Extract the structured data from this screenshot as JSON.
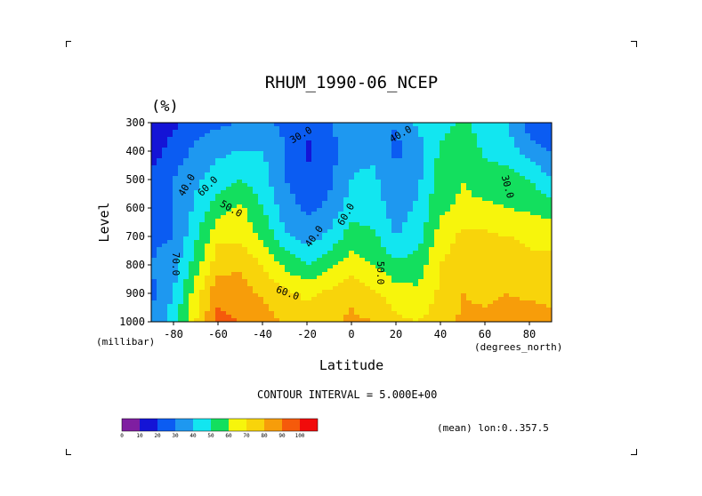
{
  "chart_data": {
    "type": "heatmap",
    "title": "RHUM_1990-06_NCEP",
    "units": "(%)",
    "xlabel": "Latitude",
    "x_units": "(degrees_north)",
    "ylabel": "Level",
    "y_units": "(millibar)",
    "x_ticks": [
      "-80",
      "-60",
      "-40",
      "-20",
      "0",
      "20",
      "40",
      "60",
      "80"
    ],
    "y_ticks": [
      "300",
      "400",
      "500",
      "600",
      "700",
      "800",
      "900",
      "1000"
    ],
    "xlim": [
      -90,
      90
    ],
    "ylim": [
      1000,
      300
    ],
    "contour_interval_text": "CONTOUR INTERVAL = 5.000E+00",
    "mean_text": "(mean) lon:0..357.5",
    "contour_labels": [
      "30.0",
      "40.0",
      "40.0",
      "60.0",
      "50.0",
      "60.0",
      "40.0",
      "30.0",
      "70.0",
      "60.0",
      "50.0"
    ],
    "colorbar": {
      "ticks": [
        "0",
        "10",
        "20",
        "30",
        "40",
        "50",
        "60",
        "70",
        "80",
        "90",
        "100"
      ],
      "colors": [
        "#7f1ea1",
        "#1414d6",
        "#0b5cf2",
        "#1e98f0",
        "#12e6f0",
        "#13df5e",
        "#f7f50c",
        "#f8d40b",
        "#f79d0a",
        "#f55a0b",
        "#f10b0b"
      ]
    },
    "levels": [
      300,
      400,
      500,
      600,
      700,
      800,
      900,
      1000
    ],
    "lats": [
      -90,
      -80,
      -70,
      -60,
      -50,
      -40,
      -30,
      -20,
      -10,
      0,
      10,
      20,
      30,
      40,
      50,
      60,
      70,
      80,
      90
    ],
    "rhum": [
      [
        10,
        18,
        25,
        28,
        30,
        32,
        28,
        22,
        28,
        40,
        35,
        30,
        42,
        45,
        52,
        45,
        40,
        25,
        20
      ],
      [
        15,
        25,
        32,
        38,
        40,
        40,
        30,
        18,
        25,
        38,
        38,
        28,
        35,
        52,
        58,
        48,
        45,
        35,
        30
      ],
      [
        22,
        30,
        38,
        45,
        50,
        45,
        30,
        22,
        28,
        40,
        42,
        32,
        38,
        55,
        60,
        55,
        55,
        50,
        40
      ],
      [
        25,
        30,
        42,
        55,
        62,
        50,
        35,
        28,
        32,
        45,
        45,
        35,
        42,
        58,
        62,
        62,
        60,
        58,
        55
      ],
      [
        28,
        30,
        48,
        68,
        68,
        58,
        42,
        35,
        42,
        55,
        52,
        40,
        45,
        65,
        72,
        72,
        70,
        68,
        68
      ],
      [
        30,
        35,
        55,
        76,
        78,
        70,
        58,
        50,
        58,
        65,
        60,
        52,
        55,
        70,
        76,
        76,
        78,
        72,
        72
      ],
      [
        28,
        40,
        65,
        88,
        85,
        78,
        72,
        68,
        72,
        78,
        72,
        65,
        62,
        72,
        80,
        78,
        80,
        78,
        78
      ],
      [
        30,
        45,
        70,
        92,
        90,
        86,
        78,
        75,
        78,
        82,
        80,
        72,
        70,
        75,
        82,
        82,
        84,
        85,
        82
      ]
    ]
  }
}
